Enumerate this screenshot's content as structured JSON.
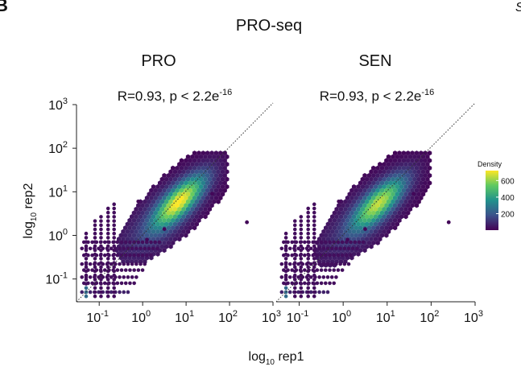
{
  "panel_label": "B",
  "corner_text": "S",
  "chart_data": {
    "type": "heatmap",
    "title": "PRO-seq",
    "xlabel": "log10 rep1",
    "ylabel": "log10 rep2",
    "xlabel_main": "log",
    "xlabel_sub": "10",
    "xlabel_rest": " rep1",
    "ylabel_main": "log",
    "ylabel_sub": "10",
    "ylabel_rest": " rep2",
    "x_scale": "log10",
    "y_scale": "log10",
    "xlim": [
      0.03,
      1000
    ],
    "ylim": [
      0.03,
      1000
    ],
    "x_ticks": [
      {
        "base": "10",
        "exp": "-1",
        "value": 0.1
      },
      {
        "base": "10",
        "exp": "0",
        "value": 1
      },
      {
        "base": "10",
        "exp": "1",
        "value": 10
      },
      {
        "base": "10",
        "exp": "2",
        "value": 100
      },
      {
        "base": "10",
        "exp": "3",
        "value": 1000
      }
    ],
    "y_ticks": [
      {
        "base": "10",
        "exp": "-1",
        "value": 0.1
      },
      {
        "base": "10",
        "exp": "0",
        "value": 1
      },
      {
        "base": "10",
        "exp": "1",
        "value": 10
      },
      {
        "base": "10",
        "exp": "2",
        "value": 100
      },
      {
        "base": "10",
        "exp": "3",
        "value": 1000
      }
    ],
    "identity_line": true,
    "colorbar": {
      "title": "Density",
      "ticks": [
        "600",
        "400",
        "200"
      ],
      "tick_values": [
        600,
        400,
        200
      ],
      "min": 1,
      "max": 720,
      "colors": [
        "#440154",
        "#3b528b",
        "#21918c",
        "#5ec962",
        "#fde725"
      ]
    },
    "panels": [
      {
        "name": "PRO",
        "annotation": "R=0.93, p < 2.2e",
        "annotation_exp": "-16",
        "r": 0.93,
        "density_peak": {
          "x": 7,
          "y": 6,
          "max_density": 720
        }
      },
      {
        "name": "SEN",
        "annotation": "R=0.93, p < 2.2e",
        "annotation_exp": "-16",
        "r": 0.93,
        "density_peak": {
          "x": 6.5,
          "y": 5.5,
          "max_density": 640
        }
      }
    ]
  }
}
